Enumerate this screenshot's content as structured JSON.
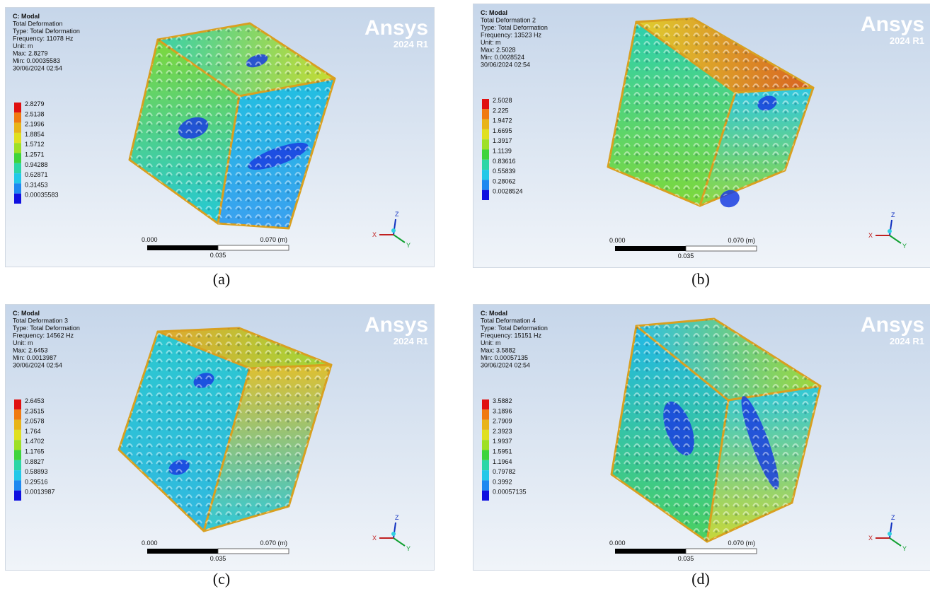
{
  "panels": [
    {
      "caption": "(a)",
      "brand": "Ansys",
      "version": "2024 R1",
      "header": [
        "C: Modal",
        "Total Deformation",
        "Type: Total Deformation",
        "Frequency: 11078 Hz",
        "Unit: m",
        "Max: 2.8279",
        "Min: 0.00035583",
        "30/06/2024 02:54"
      ],
      "legend": [
        "2.8279",
        "2.5138",
        "2.1996",
        "1.8854",
        "1.5712",
        "1.2571",
        "0.94288",
        "0.62871",
        "0.31453",
        "0.00035583"
      ],
      "scale": {
        "left": "0.000",
        "right": "0.070 (m)",
        "middle": "0.035"
      },
      "axes": {
        "z": "Z",
        "x": "X",
        "y": "Y"
      }
    },
    {
      "caption": "(b)",
      "brand": "Ansys",
      "version": "2024 R1",
      "header": [
        "C: Modal",
        "Total Deformation 2",
        "Type: Total Deformation",
        "Frequency: 13523 Hz",
        "Unit: m",
        "Max: 2.5028",
        "Min: 0.0028524",
        "30/06/2024 02:54"
      ],
      "legend": [
        "2.5028",
        "2.225",
        "1.9472",
        "1.6695",
        "1.3917",
        "1.1139",
        "0.83616",
        "0.55839",
        "0.28062",
        "0.0028524"
      ],
      "scale": {
        "left": "0.000",
        "right": "0.070 (m)",
        "middle": "0.035"
      },
      "axes": {
        "z": "Z",
        "x": "X",
        "y": "Y"
      }
    },
    {
      "caption": "(c)",
      "brand": "Ansys",
      "version": "2024 R1",
      "header": [
        "C: Modal",
        "Total Deformation 3",
        "Type: Total Deformation",
        "Frequency: 14562 Hz",
        "Unit: m",
        "Max: 2.6453",
        "Min: 0.0013987",
        "30/06/2024 02:54"
      ],
      "legend": [
        "2.6453",
        "2.3515",
        "2.0578",
        "1.764",
        "1.4702",
        "1.1765",
        "0.8827",
        "0.58893",
        "0.29516",
        "0.0013987"
      ],
      "scale": {
        "left": "0.000",
        "right": "0.070 (m)",
        "middle": "0.035"
      },
      "axes": {
        "z": "Z",
        "x": "X",
        "y": "Y"
      }
    },
    {
      "caption": "(d)",
      "brand": "Ansys",
      "version": "2024 R1",
      "header": [
        "C: Modal",
        "Total Deformation 4",
        "Type: Total Deformation",
        "Frequency: 15151 Hz",
        "Unit: m",
        "Max: 3.5882",
        "Min: 0.00057135",
        "30/06/2024 02:54"
      ],
      "legend": [
        "3.5882",
        "3.1896",
        "2.7909",
        "2.3923",
        "1.9937",
        "1.5951",
        "1.1964",
        "0.79782",
        "0.3992",
        "0.00057135"
      ],
      "scale": {
        "left": "0.000",
        "right": "0.070 (m)",
        "middle": "0.035"
      },
      "axes": {
        "z": "Z",
        "x": "X",
        "y": "Y"
      }
    }
  ]
}
